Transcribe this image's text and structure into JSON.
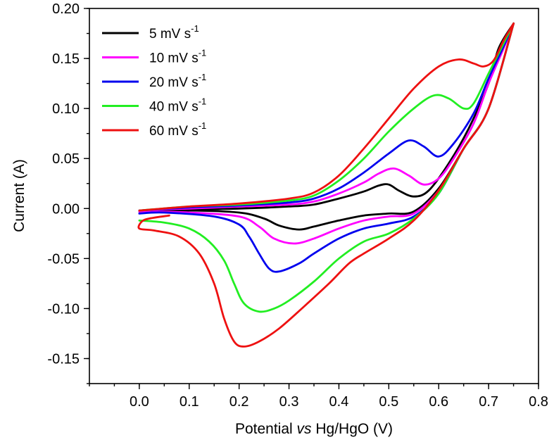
{
  "chart_data": {
    "type": "line",
    "xlabel_parts": [
      "Potential ",
      "vs",
      " Hg/HgO (V)"
    ],
    "ylabel": "Current (A)",
    "xlim": [
      -0.1,
      0.8
    ],
    "ylim": [
      -0.175,
      0.2
    ],
    "x_ticks": [
      0.0,
      0.1,
      0.2,
      0.3,
      0.4,
      0.5,
      0.6,
      0.7,
      0.8
    ],
    "x_tick_labels": [
      "0.0",
      "0.1",
      "0.2",
      "0.3",
      "0.4",
      "0.5",
      "0.6",
      "0.7",
      "0.8"
    ],
    "y_ticks": [
      -0.15,
      -0.1,
      -0.05,
      0.0,
      0.05,
      0.1,
      0.15,
      0.2
    ],
    "y_tick_labels": [
      "-0.15",
      "-0.10",
      "-0.05",
      "0.00",
      "0.05",
      "0.10",
      "0.15",
      "0.20"
    ],
    "legend_position": "top-left",
    "series": [
      {
        "name": "5 mV s",
        "name_sup": "-1",
        "color": "#000000",
        "anodic": [
          [
            0.0,
            -0.003
          ],
          [
            0.1,
            -0.001
          ],
          [
            0.2,
            0.0
          ],
          [
            0.3,
            0.002
          ],
          [
            0.35,
            0.004
          ],
          [
            0.4,
            0.01
          ],
          [
            0.45,
            0.017
          ],
          [
            0.48,
            0.023
          ],
          [
            0.5,
            0.024
          ],
          [
            0.52,
            0.018
          ],
          [
            0.55,
            0.012
          ],
          [
            0.58,
            0.018
          ],
          [
            0.62,
            0.045
          ],
          [
            0.66,
            0.08
          ],
          [
            0.7,
            0.125
          ],
          [
            0.72,
            0.16
          ],
          [
            0.75,
            0.185
          ]
        ],
        "cathodic": [
          [
            0.75,
            0.185
          ],
          [
            0.7,
            0.1
          ],
          [
            0.65,
            0.06
          ],
          [
            0.6,
            0.02
          ],
          [
            0.55,
            -0.003
          ],
          [
            0.5,
            -0.005
          ],
          [
            0.45,
            -0.007
          ],
          [
            0.4,
            -0.012
          ],
          [
            0.35,
            -0.018
          ],
          [
            0.32,
            -0.021
          ],
          [
            0.28,
            -0.017
          ],
          [
            0.25,
            -0.01
          ],
          [
            0.2,
            -0.004
          ],
          [
            0.1,
            -0.002
          ],
          [
            0.0,
            -0.003
          ]
        ]
      },
      {
        "name": "10 mV s",
        "name_sup": "-1",
        "color": "#ff00ff",
        "anodic": [
          [
            0.0,
            -0.002
          ],
          [
            0.1,
            0.0
          ],
          [
            0.2,
            0.002
          ],
          [
            0.3,
            0.004
          ],
          [
            0.35,
            0.007
          ],
          [
            0.4,
            0.015
          ],
          [
            0.45,
            0.026
          ],
          [
            0.48,
            0.035
          ],
          [
            0.51,
            0.04
          ],
          [
            0.54,
            0.033
          ],
          [
            0.57,
            0.024
          ],
          [
            0.6,
            0.03
          ],
          [
            0.63,
            0.05
          ],
          [
            0.67,
            0.085
          ],
          [
            0.7,
            0.125
          ],
          [
            0.73,
            0.16
          ],
          [
            0.75,
            0.185
          ]
        ],
        "cathodic": [
          [
            0.75,
            0.185
          ],
          [
            0.7,
            0.1
          ],
          [
            0.65,
            0.06
          ],
          [
            0.6,
            0.018
          ],
          [
            0.55,
            -0.005
          ],
          [
            0.5,
            -0.008
          ],
          [
            0.45,
            -0.012
          ],
          [
            0.4,
            -0.02
          ],
          [
            0.35,
            -0.03
          ],
          [
            0.31,
            -0.035
          ],
          [
            0.27,
            -0.03
          ],
          [
            0.24,
            -0.018
          ],
          [
            0.2,
            -0.008
          ],
          [
            0.1,
            -0.004
          ],
          [
            0.0,
            -0.003
          ]
        ]
      },
      {
        "name": "20 mV s",
        "name_sup": "-1",
        "color": "#0000ee",
        "anodic": [
          [
            0.0,
            -0.002
          ],
          [
            0.1,
            0.001
          ],
          [
            0.2,
            0.003
          ],
          [
            0.3,
            0.006
          ],
          [
            0.35,
            0.01
          ],
          [
            0.4,
            0.02
          ],
          [
            0.45,
            0.036
          ],
          [
            0.5,
            0.055
          ],
          [
            0.54,
            0.068
          ],
          [
            0.57,
            0.062
          ],
          [
            0.6,
            0.052
          ],
          [
            0.63,
            0.065
          ],
          [
            0.67,
            0.095
          ],
          [
            0.7,
            0.13
          ],
          [
            0.73,
            0.162
          ],
          [
            0.75,
            0.185
          ]
        ],
        "cathodic": [
          [
            0.75,
            0.185
          ],
          [
            0.7,
            0.1
          ],
          [
            0.65,
            0.06
          ],
          [
            0.6,
            0.015
          ],
          [
            0.55,
            -0.008
          ],
          [
            0.5,
            -0.015
          ],
          [
            0.45,
            -0.02
          ],
          [
            0.4,
            -0.03
          ],
          [
            0.35,
            -0.045
          ],
          [
            0.32,
            -0.055
          ],
          [
            0.28,
            -0.063
          ],
          [
            0.26,
            -0.06
          ],
          [
            0.24,
            -0.045
          ],
          [
            0.22,
            -0.028
          ],
          [
            0.2,
            -0.016
          ],
          [
            0.15,
            -0.008
          ],
          [
            0.05,
            -0.004
          ],
          [
            0.0,
            -0.005
          ]
        ]
      },
      {
        "name": "40 mV s",
        "name_sup": "-1",
        "color": "#22ee22",
        "anodic": [
          [
            0.0,
            -0.002
          ],
          [
            0.1,
            0.002
          ],
          [
            0.2,
            0.004
          ],
          [
            0.3,
            0.008
          ],
          [
            0.35,
            0.013
          ],
          [
            0.4,
            0.028
          ],
          [
            0.45,
            0.05
          ],
          [
            0.5,
            0.077
          ],
          [
            0.55,
            0.1
          ],
          [
            0.59,
            0.113
          ],
          [
            0.62,
            0.11
          ],
          [
            0.65,
            0.1
          ],
          [
            0.67,
            0.105
          ],
          [
            0.7,
            0.135
          ],
          [
            0.73,
            0.165
          ],
          [
            0.75,
            0.185
          ]
        ],
        "cathodic": [
          [
            0.75,
            0.185
          ],
          [
            0.7,
            0.1
          ],
          [
            0.65,
            0.06
          ],
          [
            0.6,
            0.015
          ],
          [
            0.55,
            -0.01
          ],
          [
            0.5,
            -0.025
          ],
          [
            0.45,
            -0.033
          ],
          [
            0.4,
            -0.05
          ],
          [
            0.35,
            -0.073
          ],
          [
            0.3,
            -0.092
          ],
          [
            0.27,
            -0.1
          ],
          [
            0.24,
            -0.103
          ],
          [
            0.21,
            -0.095
          ],
          [
            0.19,
            -0.075
          ],
          [
            0.17,
            -0.052
          ],
          [
            0.14,
            -0.033
          ],
          [
            0.1,
            -0.02
          ],
          [
            0.05,
            -0.014
          ],
          [
            0.0,
            -0.012
          ]
        ]
      },
      {
        "name": "60 mV s",
        "name_sup": "-1",
        "color": "#ee1111",
        "anodic": [
          [
            0.0,
            -0.002
          ],
          [
            0.1,
            0.002
          ],
          [
            0.2,
            0.005
          ],
          [
            0.3,
            0.01
          ],
          [
            0.35,
            0.016
          ],
          [
            0.4,
            0.033
          ],
          [
            0.45,
            0.06
          ],
          [
            0.5,
            0.09
          ],
          [
            0.55,
            0.12
          ],
          [
            0.6,
            0.142
          ],
          [
            0.64,
            0.149
          ],
          [
            0.67,
            0.145
          ],
          [
            0.69,
            0.142
          ],
          [
            0.71,
            0.148
          ],
          [
            0.73,
            0.168
          ],
          [
            0.75,
            0.185
          ]
        ],
        "cathodic": [
          [
            0.75,
            0.185
          ],
          [
            0.7,
            0.1
          ],
          [
            0.65,
            0.06
          ],
          [
            0.6,
            0.018
          ],
          [
            0.55,
            -0.012
          ],
          [
            0.5,
            -0.03
          ],
          [
            0.45,
            -0.045
          ],
          [
            0.42,
            -0.055
          ],
          [
            0.38,
            -0.075
          ],
          [
            0.33,
            -0.098
          ],
          [
            0.28,
            -0.12
          ],
          [
            0.24,
            -0.133
          ],
          [
            0.21,
            -0.138
          ],
          [
            0.19,
            -0.133
          ],
          [
            0.17,
            -0.11
          ],
          [
            0.15,
            -0.075
          ],
          [
            0.12,
            -0.045
          ],
          [
            0.08,
            -0.028
          ],
          [
            0.03,
            -0.022
          ],
          [
            0.0,
            -0.02
          ],
          [
            0.005,
            -0.013
          ],
          [
            0.02,
            -0.01
          ],
          [
            0.06,
            -0.007
          ]
        ]
      }
    ]
  }
}
